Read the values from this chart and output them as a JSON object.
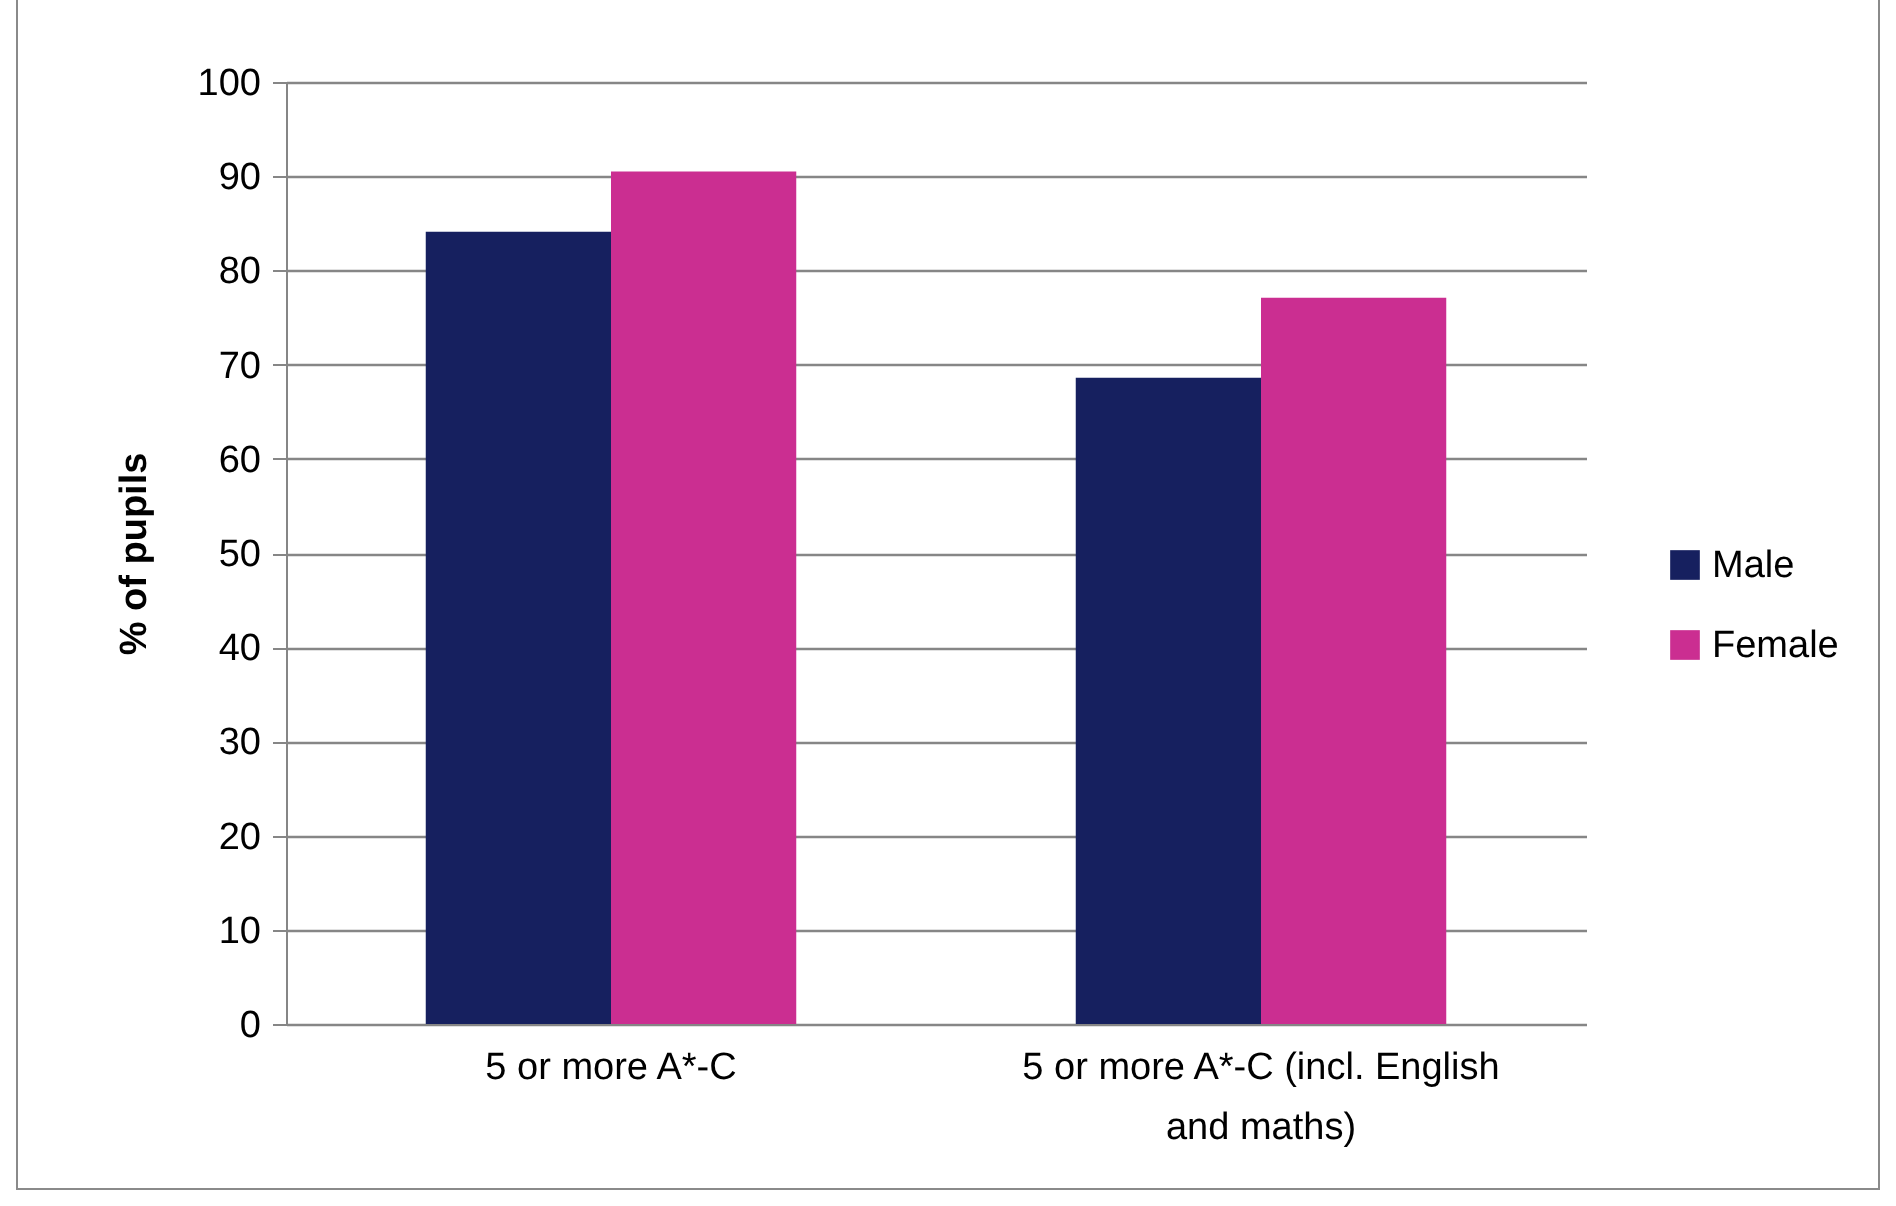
{
  "chart_data": {
    "type": "bar",
    "ylabel": "% of pupils",
    "categories": [
      "5 or more A*-C",
      "5 or more A*-C (incl. English and maths)"
    ],
    "series": [
      {
        "name": "Male",
        "color": "#16205f",
        "values": [
          84.1,
          68.6
        ]
      },
      {
        "name": "Female",
        "color": "#cb2e91",
        "values": [
          90.5,
          77.1
        ]
      }
    ],
    "ylim": [
      0,
      100
    ],
    "yticks": [
      0,
      10,
      20,
      30,
      40,
      50,
      60,
      70,
      80,
      90,
      100
    ],
    "grid": "y",
    "legend": "right"
  }
}
